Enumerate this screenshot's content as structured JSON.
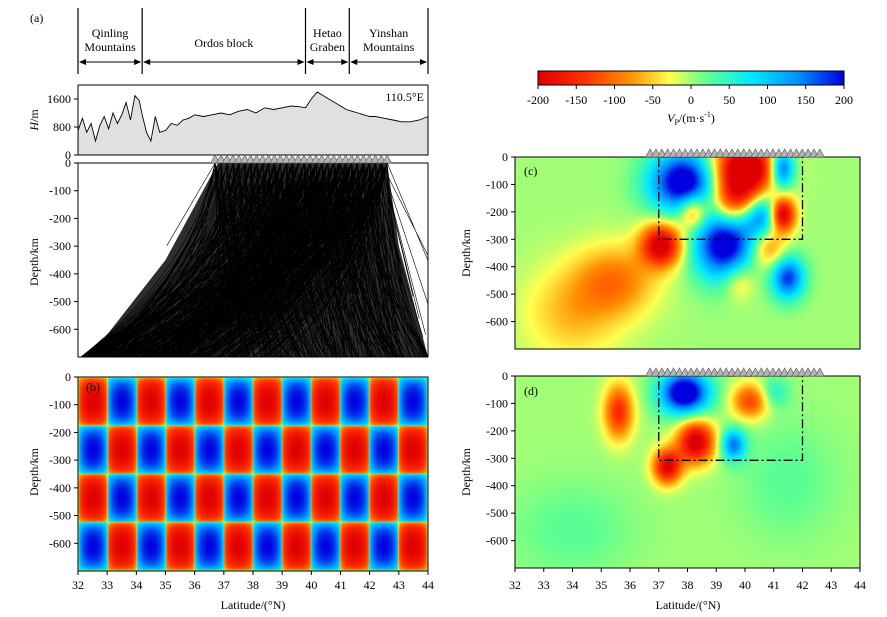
{
  "chart_data": [
    {
      "panel": "(a)",
      "type": "line",
      "title": "",
      "ylabel_main": "H",
      "ylabel_unit": "/m",
      "annotation": "110.5°E",
      "yticks": [
        0,
        800,
        1600
      ],
      "ylim": [
        0,
        2000
      ],
      "xlim": [
        32,
        44
      ],
      "fill": "#e0e0e0",
      "regions": [
        {
          "lines": [
            "Qinling",
            "Mountains"
          ],
          "from": 32,
          "to": 34.2
        },
        {
          "lines": [
            "Ordos block"
          ],
          "from": 34.2,
          "to": 39.8
        },
        {
          "lines": [
            "Hetao",
            "Graben"
          ],
          "from": 39.8,
          "to": 41.3
        },
        {
          "lines": [
            "Yinshan",
            "Mountains"
          ],
          "from": 41.3,
          "to": 44
        }
      ],
      "x": [
        32.0,
        32.15,
        32.3,
        32.45,
        32.6,
        32.75,
        32.9,
        33.05,
        33.2,
        33.35,
        33.5,
        33.65,
        33.8,
        33.95,
        34.1,
        34.2,
        34.35,
        34.5,
        34.65,
        34.8,
        35.0,
        35.2,
        35.4,
        35.6,
        35.8,
        36.0,
        36.3,
        36.6,
        36.9,
        37.2,
        37.5,
        37.8,
        38.1,
        38.4,
        38.7,
        39.0,
        39.3,
        39.6,
        39.8,
        40.0,
        40.2,
        40.4,
        40.6,
        40.8,
        41.0,
        41.2,
        41.4,
        41.6,
        41.8,
        42.0,
        42.2,
        42.5,
        42.8,
        43.1,
        43.4,
        43.7,
        44.0
      ],
      "values": [
        700,
        1050,
        650,
        900,
        400,
        850,
        1100,
        750,
        1200,
        900,
        1150,
        1500,
        1000,
        1700,
        1550,
        1150,
        650,
        400,
        1100,
        650,
        700,
        900,
        850,
        1000,
        1050,
        1150,
        1100,
        1150,
        1200,
        1150,
        1250,
        1300,
        1200,
        1350,
        1300,
        1350,
        1400,
        1380,
        1350,
        1600,
        1800,
        1700,
        1600,
        1500,
        1400,
        1300,
        1250,
        1200,
        1150,
        1100,
        1100,
        1050,
        1000,
        950,
        950,
        1000,
        1100
      ]
    },
    {
      "panel": "",
      "type": "ray-paths",
      "ylabel": "Depth/km",
      "yticks": [
        0,
        -100,
        -200,
        -300,
        -400,
        -500,
        -600
      ],
      "ylim": [
        -700,
        0
      ],
      "xlim": [
        32,
        44
      ],
      "stations_lat_range": [
        36.7,
        42.6
      ],
      "station_count": 30
    },
    {
      "panel": "(b)",
      "type": "heatmap",
      "description_label": "checkerboard input model",
      "ylabel": "Depth/km",
      "yticks": [
        0,
        -100,
        -200,
        -300,
        -400,
        -500,
        -600
      ],
      "xticks": [
        32,
        33,
        34,
        35,
        36,
        37,
        38,
        39,
        40,
        41,
        42,
        43,
        44
      ],
      "xlabel": "Latitude/(°N)",
      "ylim": [
        -700,
        0
      ],
      "xlim": [
        32,
        44
      ],
      "cell_width_deg": 1.0,
      "cell_depth_km": 175,
      "amplitude": 200
    },
    {
      "panel": "",
      "type": "colorbar",
      "ticks": [
        -200,
        -150,
        -100,
        -50,
        0,
        50,
        100,
        150,
        200
      ],
      "label_main": "V",
      "label_sub": "P",
      "label_unit": "/(m·s",
      "label_exp": "-1",
      "label_close": ")",
      "range": [
        -200,
        200
      ],
      "colors": [
        "#e00000",
        "#ff3000",
        "#ff9000",
        "#ffff50",
        "#60ff90",
        "#00e8ff",
        "#0090ff",
        "#0000e0"
      ]
    },
    {
      "panel": "(c)",
      "type": "heatmap",
      "ylabel": "Depth/km",
      "yticks": [
        0,
        -100,
        -200,
        -300,
        -400,
        -500,
        -600
      ],
      "ylim": [
        -700,
        0
      ],
      "xlim": [
        32,
        44
      ],
      "box": {
        "lat": [
          37,
          42
        ],
        "depth": [
          0,
          -300
        ]
      },
      "anomalies": [
        {
          "lat": 37.9,
          "depth": -90,
          "sx": 0.85,
          "sy": 80,
          "amp": 240
        },
        {
          "lat": 40.0,
          "depth": -40,
          "sx": 0.8,
          "sy": 70,
          "amp": -260
        },
        {
          "lat": 39.6,
          "depth": -160,
          "sx": 0.6,
          "sy": 60,
          "amp": -160
        },
        {
          "lat": 38.2,
          "depth": -200,
          "sx": 0.35,
          "sy": 45,
          "amp": -140
        },
        {
          "lat": 37.1,
          "depth": -320,
          "sx": 0.5,
          "sy": 55,
          "amp": -220
        },
        {
          "lat": 35.5,
          "depth": -450,
          "sx": 1.0,
          "sy": 90,
          "amp": -90
        },
        {
          "lat": 34.0,
          "depth": -570,
          "sx": 1.2,
          "sy": 120,
          "amp": -60
        },
        {
          "lat": 39.3,
          "depth": -320,
          "sx": 0.75,
          "sy": 90,
          "amp": 230
        },
        {
          "lat": 40.7,
          "depth": -220,
          "sx": 0.5,
          "sy": 60,
          "amp": 170
        },
        {
          "lat": 41.3,
          "depth": -210,
          "sx": 0.32,
          "sy": 45,
          "amp": -260
        },
        {
          "lat": 41.3,
          "depth": -40,
          "sx": 0.3,
          "sy": 50,
          "amp": 200
        },
        {
          "lat": 40.8,
          "depth": -320,
          "sx": 0.45,
          "sy": 60,
          "amp": -120
        },
        {
          "lat": 41.5,
          "depth": -440,
          "sx": 0.4,
          "sy": 55,
          "amp": 180
        },
        {
          "lat": 39.8,
          "depth": -450,
          "sx": 0.4,
          "sy": 50,
          "amp": -70
        }
      ]
    },
    {
      "panel": "(d)",
      "type": "heatmap",
      "ylabel": "Depth/km",
      "yticks": [
        0,
        -100,
        -200,
        -300,
        -400,
        -500,
        -600
      ],
      "xticks": [
        32,
        33,
        34,
        35,
        36,
        37,
        38,
        39,
        40,
        41,
        42,
        43,
        44
      ],
      "xlabel": "Latitude/(°N)",
      "ylim": [
        -700,
        0
      ],
      "xlim": [
        32,
        44
      ],
      "box": {
        "lat": [
          37,
          42
        ],
        "depth": [
          0,
          -300
        ]
      },
      "anomalies": [
        {
          "lat": 35.6,
          "depth": -130,
          "sx": 0.35,
          "sy": 70,
          "amp": -150
        },
        {
          "lat": 37.9,
          "depth": -60,
          "sx": 0.6,
          "sy": 55,
          "amp": 250
        },
        {
          "lat": 40.2,
          "depth": -90,
          "sx": 0.45,
          "sy": 45,
          "amp": -130
        },
        {
          "lat": 38.3,
          "depth": -240,
          "sx": 0.45,
          "sy": 55,
          "amp": -220
        },
        {
          "lat": 37.3,
          "depth": -330,
          "sx": 0.35,
          "sy": 45,
          "amp": -200
        },
        {
          "lat": 39.6,
          "depth": -250,
          "sx": 0.3,
          "sy": 40,
          "amp": 150
        },
        {
          "lat": 41.0,
          "depth": -60,
          "sx": 0.35,
          "sy": 40,
          "amp": 60
        },
        {
          "lat": 34.0,
          "depth": -560,
          "sx": 1.5,
          "sy": 120,
          "amp": 25
        },
        {
          "lat": 41.5,
          "depth": -380,
          "sx": 1.2,
          "sy": 150,
          "amp": 25
        }
      ]
    }
  ]
}
